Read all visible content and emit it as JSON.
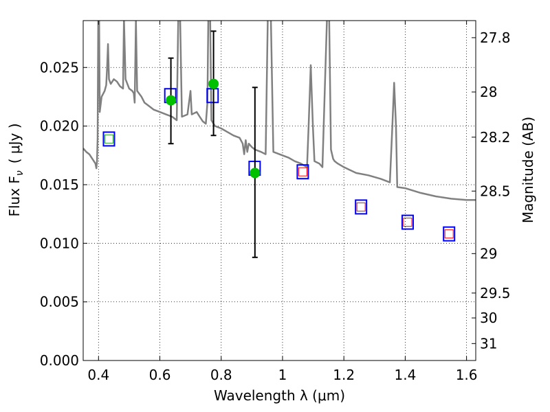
{
  "chart_data": {
    "type": "scatter",
    "xlabel": "Wavelength  λ (μm)",
    "ylabel": "Flux  F",
    "ylabel_sub": "ν",
    "ylabel_unit": "( μJy )",
    "ylabel_right": "Magnitude (AB)",
    "xlim": [
      0.35,
      1.63
    ],
    "ylim": [
      0.0,
      0.029
    ],
    "grid": true,
    "x_ticks": [
      {
        "value": 0.4,
        "label": "0.4"
      },
      {
        "value": 0.6,
        "label": "0.6"
      },
      {
        "value": 0.8,
        "label": "0.8"
      },
      {
        "value": 1.0,
        "label": "1"
      },
      {
        "value": 1.2,
        "label": "1.2"
      },
      {
        "value": 1.4,
        "label": "1.4"
      },
      {
        "value": 1.6,
        "label": "1.6"
      }
    ],
    "y_ticks": [
      {
        "value": 0.0,
        "label": "0.000"
      },
      {
        "value": 0.005,
        "label": "0.005"
      },
      {
        "value": 0.01,
        "label": "0.010"
      },
      {
        "value": 0.015,
        "label": "0.015"
      },
      {
        "value": 0.02,
        "label": "0.020"
      },
      {
        "value": 0.025,
        "label": "0.025"
      }
    ],
    "right_ticks": [
      {
        "value": 27.8,
        "label": "27.8"
      },
      {
        "value": 28.0,
        "label": "28"
      },
      {
        "value": 28.2,
        "label": "28.2"
      },
      {
        "value": 28.5,
        "label": "28.5"
      },
      {
        "value": 29.0,
        "label": "29"
      },
      {
        "value": 29.5,
        "label": "29.5"
      },
      {
        "value": 30.0,
        "label": "30"
      },
      {
        "value": 31.0,
        "label": "31"
      }
    ],
    "series": [
      {
        "kind": "spectrum",
        "color": "#808080",
        "points": [
          [
            0.35,
            0.0181
          ],
          [
            0.36,
            0.0178
          ],
          [
            0.37,
            0.0176
          ],
          [
            0.38,
            0.0172
          ],
          [
            0.385,
            0.017
          ],
          [
            0.39,
            0.0168
          ],
          [
            0.393,
            0.0164
          ],
          [
            0.395,
            0.017
          ],
          [
            0.397,
            0.019
          ],
          [
            0.399,
            0.0292
          ],
          [
            0.402,
            0.0292
          ],
          [
            0.404,
            0.0212
          ],
          [
            0.41,
            0.0225
          ],
          [
            0.42,
            0.023
          ],
          [
            0.425,
            0.0235
          ],
          [
            0.428,
            0.025
          ],
          [
            0.431,
            0.027
          ],
          [
            0.434,
            0.024
          ],
          [
            0.44,
            0.0236
          ],
          [
            0.45,
            0.024
          ],
          [
            0.46,
            0.0238
          ],
          [
            0.47,
            0.0234
          ],
          [
            0.48,
            0.0232
          ],
          [
            0.483,
            0.0292
          ],
          [
            0.488,
            0.024
          ],
          [
            0.5,
            0.0232
          ],
          [
            0.51,
            0.023
          ],
          [
            0.515,
            0.0228
          ],
          [
            0.518,
            0.022
          ],
          [
            0.522,
            0.029
          ],
          [
            0.526,
            0.023
          ],
          [
            0.54,
            0.0225
          ],
          [
            0.55,
            0.022
          ],
          [
            0.56,
            0.0218
          ],
          [
            0.57,
            0.0216
          ],
          [
            0.58,
            0.0214
          ],
          [
            0.6,
            0.0212
          ],
          [
            0.62,
            0.021
          ],
          [
            0.64,
            0.0208
          ],
          [
            0.655,
            0.0205
          ],
          [
            0.66,
            0.0292
          ],
          [
            0.666,
            0.0292
          ],
          [
            0.672,
            0.0208
          ],
          [
            0.69,
            0.021
          ],
          [
            0.7,
            0.023
          ],
          [
            0.704,
            0.021
          ],
          [
            0.72,
            0.0212
          ],
          [
            0.73,
            0.0208
          ],
          [
            0.74,
            0.0204
          ],
          [
            0.75,
            0.0202
          ],
          [
            0.755,
            0.022
          ],
          [
            0.758,
            0.0292
          ],
          [
            0.764,
            0.0292
          ],
          [
            0.768,
            0.0205
          ],
          [
            0.78,
            0.02
          ],
          [
            0.8,
            0.0198
          ],
          [
            0.82,
            0.0195
          ],
          [
            0.84,
            0.0192
          ],
          [
            0.86,
            0.019
          ],
          [
            0.87,
            0.0185
          ],
          [
            0.875,
            0.0176
          ],
          [
            0.88,
            0.0188
          ],
          [
            0.885,
            0.0178
          ],
          [
            0.89,
            0.0185
          ],
          [
            0.9,
            0.0182
          ],
          [
            0.91,
            0.018
          ],
          [
            0.93,
            0.0178
          ],
          [
            0.945,
            0.0176
          ],
          [
            0.952,
            0.0292
          ],
          [
            0.962,
            0.0292
          ],
          [
            0.97,
            0.0178
          ],
          [
            1.0,
            0.0175
          ],
          [
            1.02,
            0.0173
          ],
          [
            1.04,
            0.017
          ],
          [
            1.06,
            0.0168
          ],
          [
            1.08,
            0.0165
          ],
          [
            1.085,
            0.02
          ],
          [
            1.092,
            0.0252
          ],
          [
            1.099,
            0.02
          ],
          [
            1.104,
            0.017
          ],
          [
            1.12,
            0.0168
          ],
          [
            1.13,
            0.0165
          ],
          [
            1.14,
            0.025
          ],
          [
            1.145,
            0.0292
          ],
          [
            1.152,
            0.0292
          ],
          [
            1.158,
            0.018
          ],
          [
            1.165,
            0.0172
          ],
          [
            1.17,
            0.017
          ],
          [
            1.18,
            0.0168
          ],
          [
            1.2,
            0.0165
          ],
          [
            1.24,
            0.016
          ],
          [
            1.28,
            0.0158
          ],
          [
            1.32,
            0.0155
          ],
          [
            1.35,
            0.0152
          ],
          [
            1.358,
            0.02
          ],
          [
            1.364,
            0.0237
          ],
          [
            1.37,
            0.02
          ],
          [
            1.374,
            0.0148
          ],
          [
            1.4,
            0.0147
          ],
          [
            1.45,
            0.0143
          ],
          [
            1.5,
            0.014
          ],
          [
            1.55,
            0.0138
          ],
          [
            1.6,
            0.0137
          ],
          [
            1.63,
            0.0137
          ]
        ]
      },
      {
        "kind": "blue-squares",
        "color": "#0000ff",
        "points": [
          [
            0.434,
            0.0189
          ],
          [
            0.634,
            0.0226
          ],
          [
            0.772,
            0.0226
          ],
          [
            0.909,
            0.0164
          ],
          [
            1.066,
            0.0161
          ],
          [
            1.256,
            0.0131
          ],
          [
            1.408,
            0.0118
          ],
          [
            1.543,
            0.0108
          ]
        ]
      },
      {
        "kind": "red-squares",
        "color": "#ff0000",
        "points": [
          [
            1.066,
            0.0161
          ],
          [
            1.256,
            0.0131
          ],
          [
            1.408,
            0.0118
          ],
          [
            1.543,
            0.0108
          ]
        ]
      },
      {
        "kind": "green-square",
        "color": "#2ca02c",
        "points": [
          [
            0.434,
            0.0189
          ]
        ]
      },
      {
        "kind": "green-points",
        "color": "#00c000",
        "points": [
          [
            0.636,
            0.0222
          ],
          [
            0.775,
            0.0236
          ],
          [
            0.91,
            0.016
          ]
        ],
        "errors": [
          [
            0.0185,
            0.0258
          ],
          [
            0.0192,
            0.0281
          ],
          [
            0.0088,
            0.0233
          ]
        ]
      }
    ]
  }
}
